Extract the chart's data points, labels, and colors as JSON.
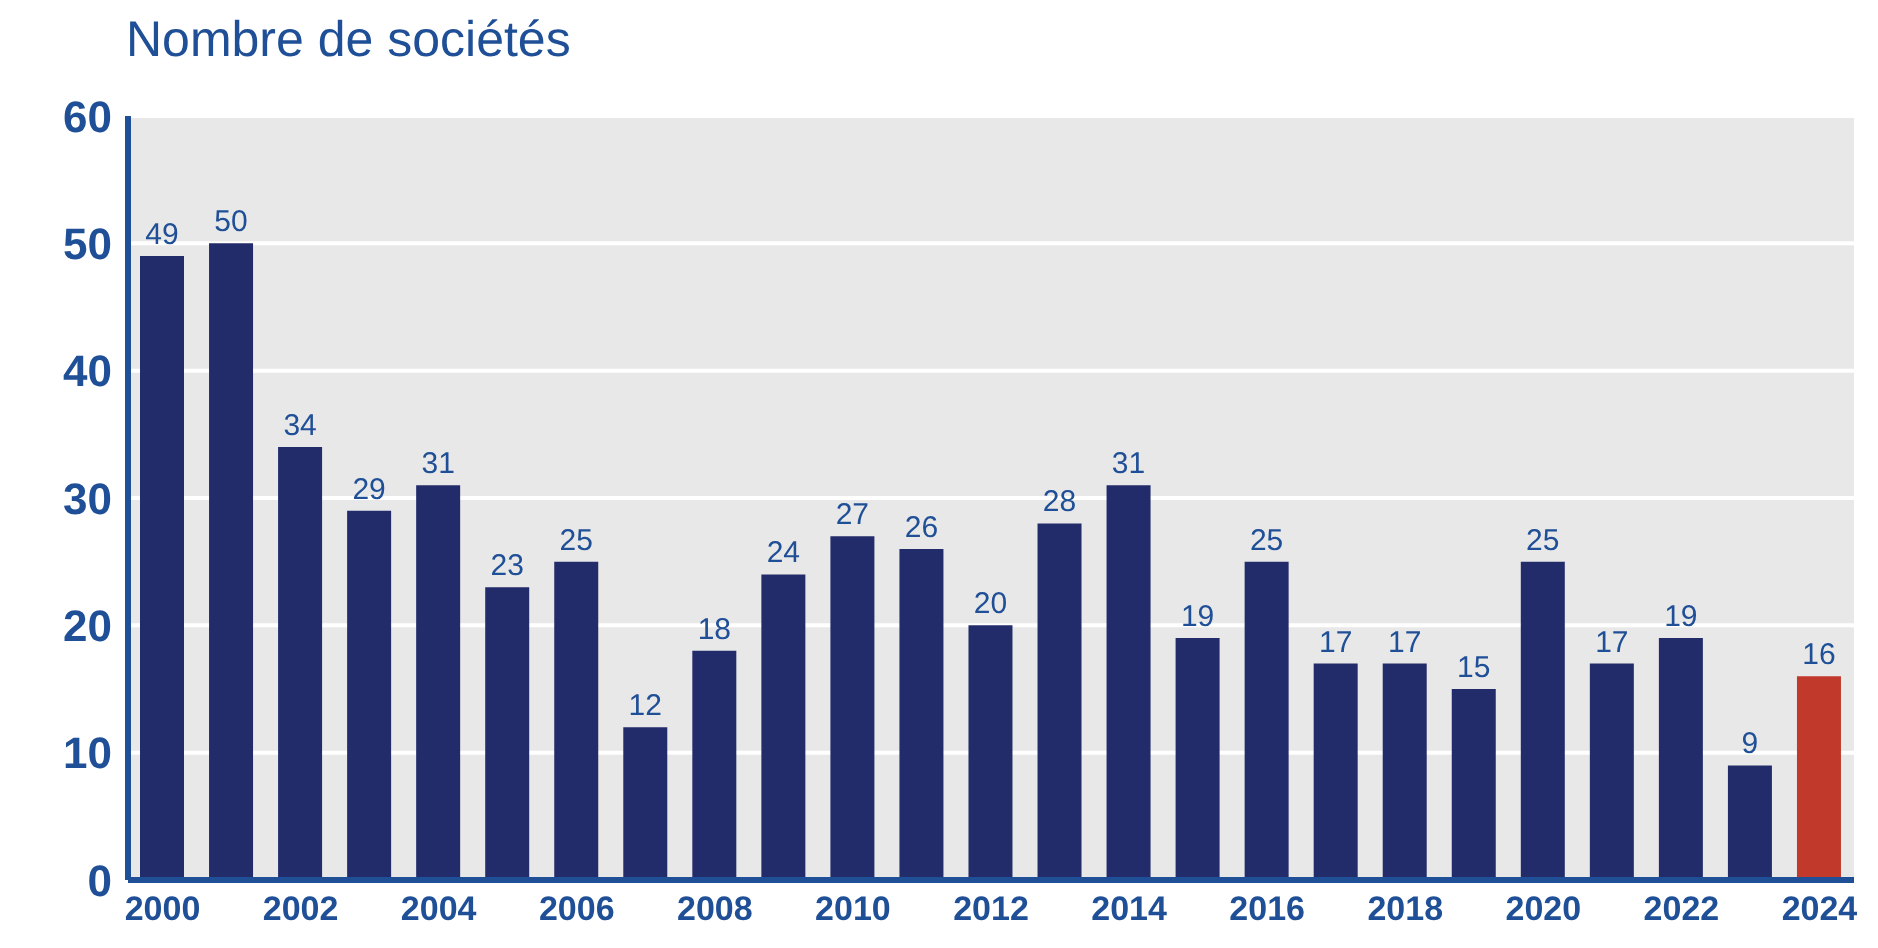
{
  "chart_data": {
    "type": "bar",
    "title": "Nombre de sociétés",
    "categories": [
      "2000",
      null,
      "2002",
      null,
      "2004",
      null,
      "2006",
      null,
      "2008",
      null,
      "2010",
      null,
      "2012",
      null,
      "2014",
      null,
      "2016",
      null,
      "2018",
      null,
      "2020",
      null,
      "2022",
      null,
      "2024"
    ],
    "values": [
      49,
      50,
      34,
      29,
      31,
      23,
      25,
      12,
      18,
      24,
      27,
      26,
      20,
      28,
      31,
      19,
      25,
      17,
      17,
      15,
      25,
      17,
      19,
      9,
      16
    ],
    "colors": [
      "#232c6b",
      "#232c6b",
      "#232c6b",
      "#232c6b",
      "#232c6b",
      "#232c6b",
      "#232c6b",
      "#232c6b",
      "#232c6b",
      "#232c6b",
      "#232c6b",
      "#232c6b",
      "#232c6b",
      "#232c6b",
      "#232c6b",
      "#232c6b",
      "#232c6b",
      "#232c6b",
      "#232c6b",
      "#232c6b",
      "#232c6b",
      "#232c6b",
      "#232c6b",
      "#232c6b",
      "#c0392b"
    ],
    "ylim": [
      0,
      60
    ],
    "yticks": [
      0,
      10,
      20,
      30,
      40,
      50,
      60
    ],
    "grid": "y",
    "data_labels": true
  }
}
